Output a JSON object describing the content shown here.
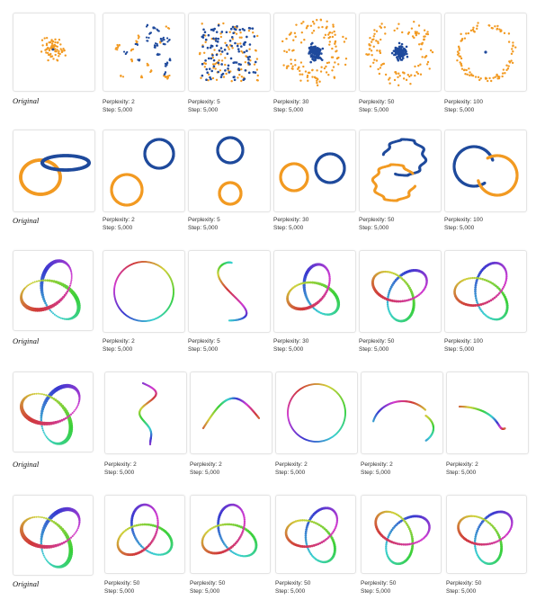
{
  "colors": {
    "blue": "#1f4a9c",
    "orange": "#f29a22",
    "cycle": [
      "#5fc44a",
      "#c8d94a",
      "#3cbfb0",
      "#4a8fd0",
      "#7b4ab8",
      "#b04ab0",
      "#3c9fd9",
      "#8fd94a"
    ]
  },
  "rows": [
    {
      "name": "gaussian-clusters",
      "original_label": "Original",
      "panels": [
        {
          "perplexity_text": "Perplexity: 2",
          "step_text": "Step: 5,000"
        },
        {
          "perplexity_text": "Perplexity: 5",
          "step_text": "Step: 5,000"
        },
        {
          "perplexity_text": "Perplexity: 30",
          "step_text": "Step: 5,000"
        },
        {
          "perplexity_text": "Perplexity: 50",
          "step_text": "Step: 5,000"
        },
        {
          "perplexity_text": "Perplexity: 100",
          "step_text": "Step: 5,000"
        }
      ]
    },
    {
      "name": "linked-rings",
      "original_label": "Original",
      "panels": [
        {
          "perplexity_text": "Perplexity: 2",
          "step_text": "Step: 5,000"
        },
        {
          "perplexity_text": "Perplexity: 5",
          "step_text": "Step: 5,000"
        },
        {
          "perplexity_text": "Perplexity: 30",
          "step_text": "Step: 5,000"
        },
        {
          "perplexity_text": "Perplexity: 50",
          "step_text": "Step: 5,000"
        },
        {
          "perplexity_text": "Perplexity: 100",
          "step_text": "Step: 5,000"
        }
      ]
    },
    {
      "name": "trefoil-knot",
      "original_label": "Original",
      "panels": [
        {
          "perplexity_text": "Perplexity: 2",
          "step_text": "Step: 5,000"
        },
        {
          "perplexity_text": "Perplexity: 5",
          "step_text": "Step: 5,000"
        },
        {
          "perplexity_text": "Perplexity: 30",
          "step_text": "Step: 5,000"
        },
        {
          "perplexity_text": "Perplexity: 50",
          "step_text": "Step: 5,000"
        },
        {
          "perplexity_text": "Perplexity: 100",
          "step_text": "Step: 5,000"
        }
      ]
    },
    {
      "name": "trefoil-knot-runs-p2",
      "original_label": "Original",
      "panels": [
        {
          "perplexity_text": "Perplexity: 2",
          "step_text": "Step: 5,000"
        },
        {
          "perplexity_text": "Perplexity: 2",
          "step_text": "Step: 5,000"
        },
        {
          "perplexity_text": "Perplexity: 2",
          "step_text": "Step: 5,000"
        },
        {
          "perplexity_text": "Perplexity: 2",
          "step_text": "Step: 5,000"
        },
        {
          "perplexity_text": "Perplexity: 2",
          "step_text": "Step: 5,000"
        }
      ]
    },
    {
      "name": "trefoil-knot-runs-p50",
      "original_label": "Original",
      "panels": [
        {
          "perplexity_text": "Perplexity: 50",
          "step_text": "Step: 5,000"
        },
        {
          "perplexity_text": "Perplexity: 50",
          "step_text": "Step: 5,000"
        },
        {
          "perplexity_text": "Perplexity: 50",
          "step_text": "Step: 5,000"
        },
        {
          "perplexity_text": "Perplexity: 50",
          "step_text": "Step: 5,000"
        },
        {
          "perplexity_text": "Perplexity: 50",
          "step_text": "Step: 5,000"
        }
      ]
    }
  ]
}
